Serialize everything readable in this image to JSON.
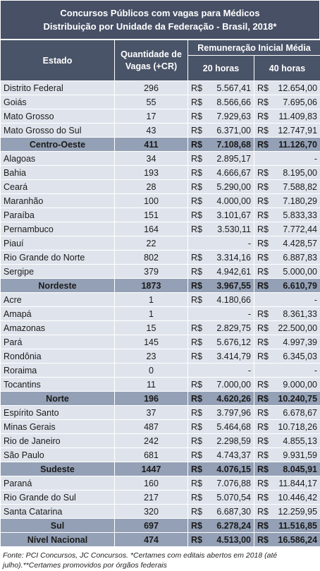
{
  "title": {
    "line1": "Concursos Públicos com vagas para Médicos",
    "line2": "Distribuição por Unidade da Federação - Brasil, 2018*"
  },
  "headers": {
    "estado": "Estado",
    "vagas": "Quantidade de Vagas (+CR)",
    "remuneracao": "Remuneração Inicial Média",
    "h20": "20 horas",
    "h40": "40 horas"
  },
  "currency": "R$",
  "rows": [
    {
      "type": "state",
      "estado": "Distrito Federal",
      "vagas": "296",
      "h20": "5.567,41",
      "h40": "12.654,00"
    },
    {
      "type": "state",
      "estado": "Goiás",
      "vagas": "55",
      "h20": "8.566,66",
      "h40": "7.695,06"
    },
    {
      "type": "state",
      "estado": "Mato Grosso",
      "vagas": "17",
      "h20": "7.929,63",
      "h40": "11.409,83"
    },
    {
      "type": "state",
      "estado": "Mato Grosso do Sul",
      "vagas": "43",
      "h20": "6.371,00",
      "h40": "12.747,91"
    },
    {
      "type": "region",
      "estado": "Centro-Oeste",
      "vagas": "411",
      "h20": "7.108,68",
      "h40": "11.126,70"
    },
    {
      "type": "state",
      "estado": "Alagoas",
      "vagas": "34",
      "h20": "2.895,17",
      "h40": "-"
    },
    {
      "type": "state",
      "estado": "Bahia",
      "vagas": "193",
      "h20": "4.666,67",
      "h40": "8.195,00"
    },
    {
      "type": "state",
      "estado": "Ceará",
      "vagas": "28",
      "h20": "5.290,00",
      "h40": "7.588,82"
    },
    {
      "type": "state",
      "estado": "Maranhão",
      "vagas": "100",
      "h20": "4.000,00",
      "h40": "7.180,29"
    },
    {
      "type": "state",
      "estado": "Paraíba",
      "vagas": "151",
      "h20": "3.101,67",
      "h40": "5.833,33"
    },
    {
      "type": "state",
      "estado": "Pernambuco",
      "vagas": "164",
      "h20": "3.530,11",
      "h40": "7.772,44"
    },
    {
      "type": "state",
      "estado": "Piauí",
      "vagas": "22",
      "h20": "-",
      "h40": "4.428,57"
    },
    {
      "type": "state",
      "estado": "Rio Grande do Norte",
      "vagas": "802",
      "h20": "3.314,16",
      "h40": "6.887,83"
    },
    {
      "type": "state",
      "estado": "Sergipe",
      "vagas": "379",
      "h20": "4.942,61",
      "h40": "5.000,00"
    },
    {
      "type": "region",
      "estado": "Nordeste",
      "vagas": "1873",
      "h20": "3.967,55",
      "h40": "6.610,79"
    },
    {
      "type": "state",
      "estado": "Acre",
      "vagas": "1",
      "h20": "4.180,66",
      "h40": "-"
    },
    {
      "type": "state",
      "estado": "Amapá",
      "vagas": "1",
      "h20": "-",
      "h40": "8.361,33"
    },
    {
      "type": "state",
      "estado": "Amazonas",
      "vagas": "15",
      "h20": "2.829,75",
      "h40": "22.500,00"
    },
    {
      "type": "state",
      "estado": "Pará",
      "vagas": "145",
      "h20": "5.676,12",
      "h40": "4.997,39"
    },
    {
      "type": "state",
      "estado": "Rondônia",
      "vagas": "23",
      "h20": "3.414,79",
      "h40": "6.345,03"
    },
    {
      "type": "state",
      "estado": "Roraima",
      "vagas": "0",
      "h20": "-",
      "h40": "-"
    },
    {
      "type": "state",
      "estado": "Tocantins",
      "vagas": "11",
      "h20": "7.000,00",
      "h40": "9.000,00"
    },
    {
      "type": "region",
      "estado": "Norte",
      "vagas": "196",
      "h20": "4.620,26",
      "h40": "10.240,75"
    },
    {
      "type": "state",
      "estado": "Espírito Santo",
      "vagas": "37",
      "h20": "3.797,96",
      "h40": "6.678,67"
    },
    {
      "type": "state",
      "estado": "Minas Gerais",
      "vagas": "487",
      "h20": "5.464,68",
      "h40": "10.718,26"
    },
    {
      "type": "state",
      "estado": "Rio de Janeiro",
      "vagas": "242",
      "h20": "2.298,59",
      "h40": "4.855,13"
    },
    {
      "type": "state",
      "estado": "São Paulo",
      "vagas": "681",
      "h20": "4.743,37",
      "h40": "9.931,59"
    },
    {
      "type": "region",
      "estado": "Sudeste",
      "vagas": "1447",
      "h20": "4.076,15",
      "h40": "8.045,91"
    },
    {
      "type": "state",
      "estado": "Paraná",
      "vagas": "160",
      "h20": "7.076,88",
      "h40": "11.844,17"
    },
    {
      "type": "state",
      "estado": "Rio Grande do Sul",
      "vagas": "217",
      "h20": "5.070,54",
      "h40": "10.446,42"
    },
    {
      "type": "state",
      "estado": "Santa Catarina",
      "vagas": "320",
      "h20": "6.687,30",
      "h40": "12.259,95"
    },
    {
      "type": "region",
      "estado": "Sul",
      "vagas": "697",
      "h20": "6.278,24",
      "h40": "11.516,85"
    },
    {
      "type": "national",
      "estado": "Nível Nacional",
      "vagas": "474",
      "h20": "4.513,00",
      "h40": "16.586,24"
    }
  ],
  "footnote": "Fonte: PCI Concursos, JC Concursos. *Certames com editais abertos em 2018 (até julho).**Certames promovidos por órgãos federais"
}
